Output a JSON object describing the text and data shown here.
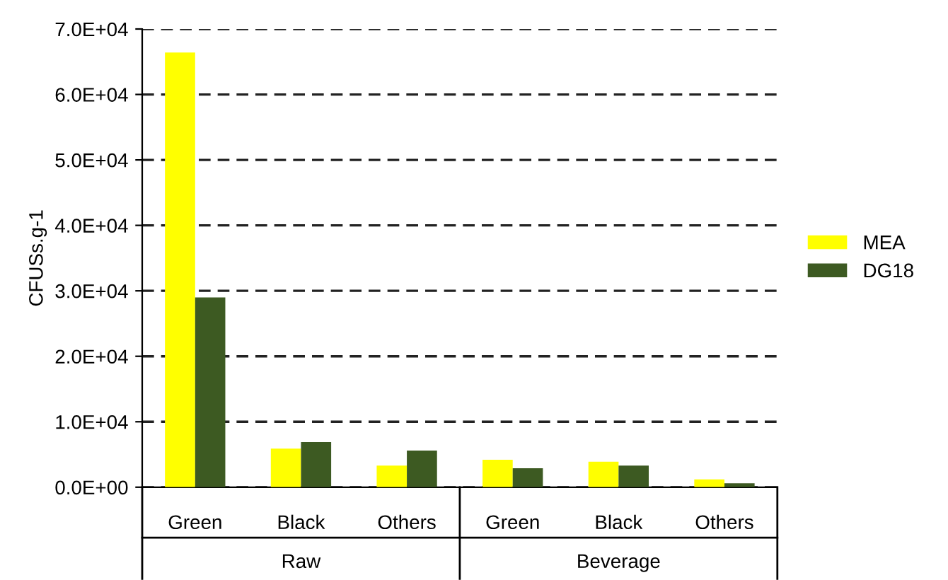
{
  "chart_data": {
    "type": "bar",
    "ylabel": "CFUSs.g-1",
    "categories": [
      "Green",
      "Black",
      "Others",
      "Green",
      "Black",
      "Others"
    ],
    "annotations": [
      "Raw",
      "Beverage"
    ],
    "series": [
      {
        "name": "MEA",
        "color": "#ffff00",
        "values": [
          66400,
          5900,
          3300,
          4200,
          3900,
          1200
        ]
      },
      {
        "name": "DG18",
        "color": "#3d5a22",
        "values": [
          29000,
          6900,
          5600,
          2900,
          3300,
          600
        ]
      }
    ],
    "ylim": [
      0,
      70000
    ],
    "yticks": [
      {
        "value": 0,
        "label": "0.0E+00"
      },
      {
        "value": 10000,
        "label": "1.0E+04"
      },
      {
        "value": 20000,
        "label": "2.0E+04"
      },
      {
        "value": 30000,
        "label": "3.0E+04"
      },
      {
        "value": 40000,
        "label": "4.0E+04"
      },
      {
        "value": 50000,
        "label": "5.0E+04"
      },
      {
        "value": 60000,
        "label": "6.0E+04"
      },
      {
        "value": 70000,
        "label": "7.0E+04"
      }
    ],
    "grid": "y",
    "legend": "right"
  }
}
